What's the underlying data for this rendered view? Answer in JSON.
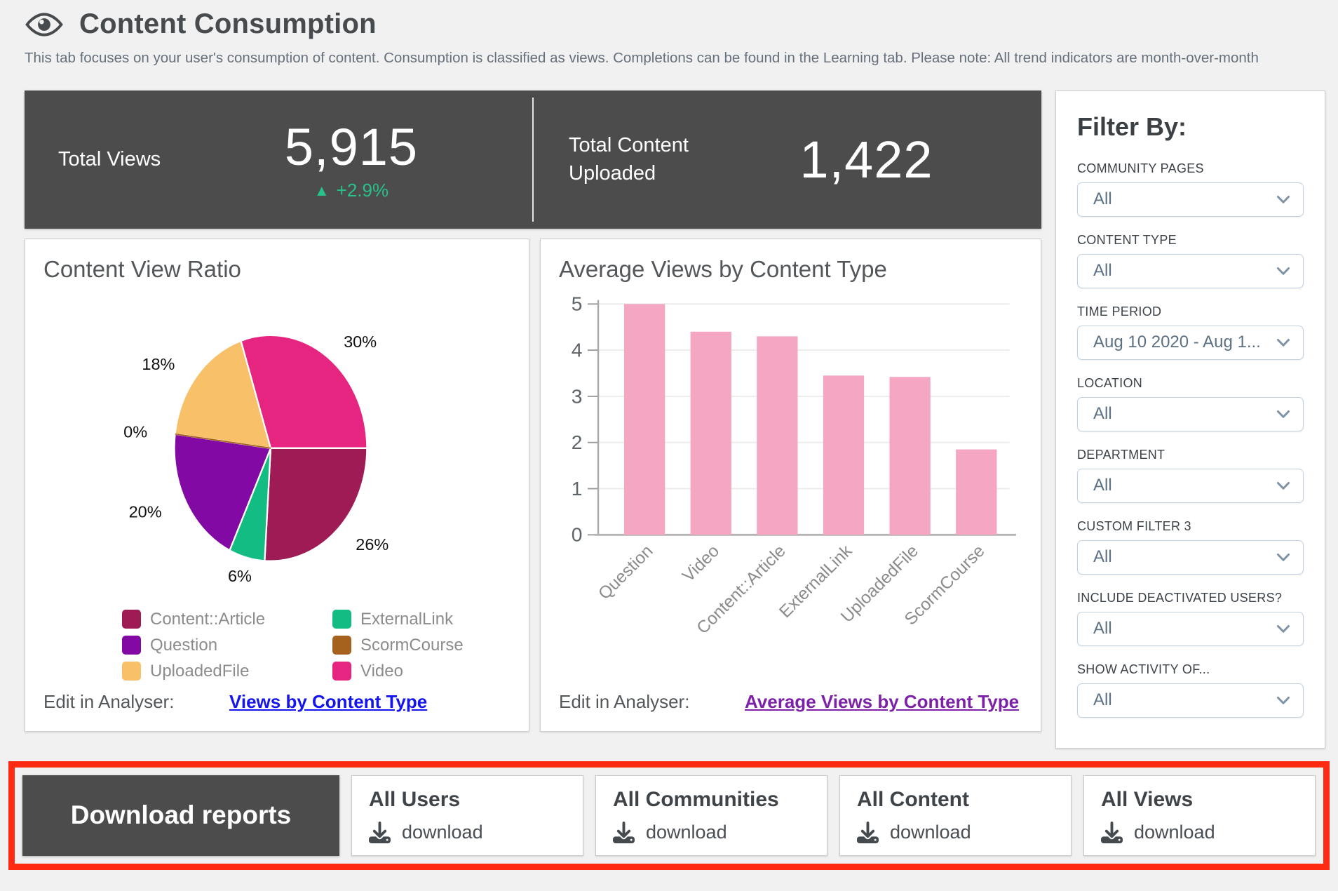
{
  "page": {
    "title": "Content Consumption",
    "description": "This tab focuses on your user's consumption of content. Consumption is classified as views. Completions can be found in the Learning tab. Please note: All trend indicators are month-over-month"
  },
  "colors": {
    "accent_dark": "#4c4c4c",
    "highlight_red": "#fe2a12",
    "trend_green": "#26c289",
    "link_blue": "#1414ee",
    "link_purple": "#7d22a8",
    "select_border": "#c2d1e0"
  },
  "stats": {
    "total_views": {
      "label": "Total Views",
      "value": "5,915",
      "trend": "+2.9%",
      "trend_direction": "up"
    },
    "total_content": {
      "label": "Total Content Uploaded",
      "value": "1,422"
    }
  },
  "pie_panel": {
    "title": "Content View Ratio",
    "edit_label": "Edit in Analyser:",
    "link_label": "Views by Content Type"
  },
  "bar_panel": {
    "title": "Average Views by Content Type",
    "edit_label": "Edit in Analyser:",
    "link_label": "Average Views by Content Type"
  },
  "filters": {
    "title": "Filter By:",
    "groups": [
      {
        "label": "COMMUNITY PAGES",
        "value": "All"
      },
      {
        "label": "CONTENT TYPE",
        "value": "All"
      },
      {
        "label": "TIME PERIOD",
        "value": "Aug 10 2020 - Aug 1..."
      },
      {
        "label": "LOCATION",
        "value": "All"
      },
      {
        "label": "DEPARTMENT",
        "value": "All"
      },
      {
        "label": "CUSTOM FILTER 3",
        "value": "All"
      },
      {
        "label": "INCLUDE DEACTIVATED USERS?",
        "value": "All"
      },
      {
        "label": "SHOW ACTIVITY OF...",
        "value": "All"
      }
    ]
  },
  "downloads": {
    "title": "Download reports",
    "cards": [
      {
        "title": "All Users",
        "action": "download"
      },
      {
        "title": "All Communities",
        "action": "download"
      },
      {
        "title": "All Content",
        "action": "download"
      },
      {
        "title": "All Views",
        "action": "download"
      }
    ]
  },
  "chart_data": [
    {
      "type": "pie",
      "title": "Content View Ratio",
      "start_angle_deg": -18,
      "slices": [
        {
          "label": "Video",
          "percent": 30,
          "color": "#e62580"
        },
        {
          "label": "Content::Article",
          "percent": 26,
          "color": "#9e1b55"
        },
        {
          "label": "ExternalLink",
          "percent": 6,
          "color": "#12bc83"
        },
        {
          "label": "Question",
          "percent": 20,
          "color": "#8209a4"
        },
        {
          "label": "ScormCourse",
          "percent": 0,
          "color": "#a5621f"
        },
        {
          "label": "UploadedFile",
          "percent": 18,
          "color": "#f8c169"
        }
      ],
      "legend_position": "bottom"
    },
    {
      "type": "bar",
      "title": "Average Views by Content Type",
      "categories": [
        "Question",
        "Video",
        "Content::Article",
        "ExternalLink",
        "UploadedFile",
        "ScormCourse"
      ],
      "values": [
        5.0,
        4.4,
        4.3,
        3.45,
        3.42,
        1.85
      ],
      "bar_color": "#f4a6c2",
      "ylim": [
        0,
        5
      ],
      "yticks": [
        0,
        1,
        2,
        3,
        4,
        5
      ],
      "grid": true,
      "xlabel": "",
      "ylabel": ""
    }
  ]
}
